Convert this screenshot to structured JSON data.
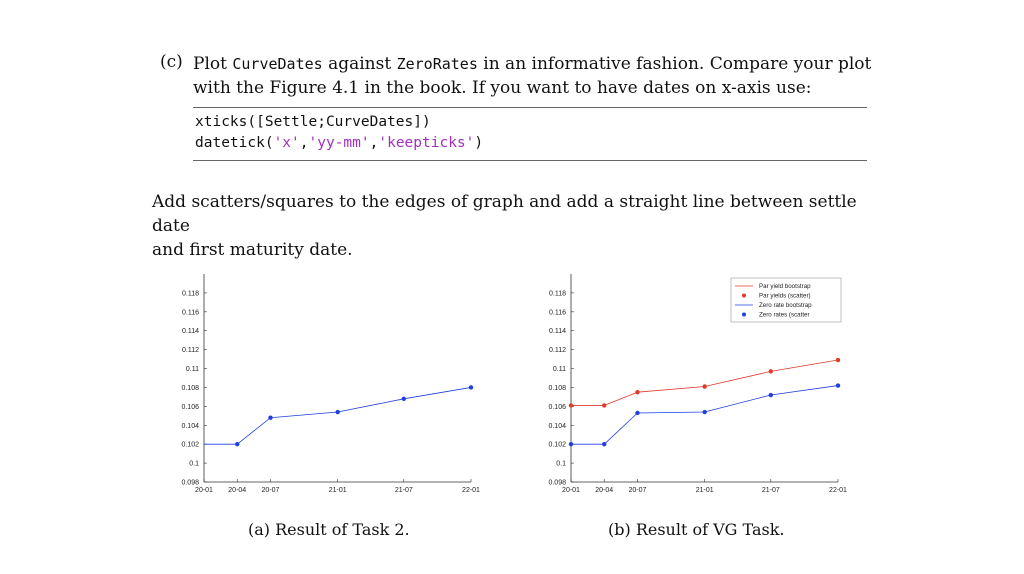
{
  "task": {
    "label": "(c)",
    "line1_part1": "Plot ",
    "line1_code1": "CurveDates",
    "line1_part2": " against ",
    "line1_code2": "ZeroRates",
    "line1_part3": " in an informative fashion. Compare your plot",
    "line2": "with the Figure 4.1 in the book. If you want to have dates on x-axis use:"
  },
  "code": {
    "line1": "xticks([Settle;CurveDates])",
    "line2_prefix": "datetick(",
    "line2_s1": "'x'",
    "line2_c1": ",",
    "line2_s2": "'yy-mm'",
    "line2_c2": ",",
    "line2_s3": "'keepticks'",
    "line2_suffix": ")"
  },
  "paragraph": {
    "line1": "Add scatters/squares to the edges of graph and add a straight line between settle date",
    "line2": "and first maturity date."
  },
  "captions": {
    "a": "(a) Result of Task 2.",
    "b": "(b) Result of VG Task."
  },
  "colors": {
    "zero": "#1f3fe0",
    "par": "#e03a2a",
    "axis": "#333333"
  },
  "chart_data": [
    {
      "type": "line",
      "title": "",
      "xlabel": "",
      "ylabel": "",
      "x": [
        "20-01",
        "20-04",
        "20-07",
        "21-01",
        "21-07",
        "22-01"
      ],
      "xtick_labels": [
        "20-01",
        "20-04",
        "20-07",
        "21-01",
        "21-07",
        "22-01"
      ],
      "ytick_labels": [
        "0.098",
        "0.1",
        "0.102",
        "0.104",
        "0.106",
        "0.108",
        "0.11",
        "0.112",
        "0.114",
        "0.116",
        "0.118"
      ],
      "ylim": [
        0.098,
        0.12
      ],
      "series": [
        {
          "values": [
            0.102,
            0.102,
            0.1048,
            0.1054,
            0.1068,
            0.108
          ]
        }
      ],
      "grid": false
    },
    {
      "type": "line",
      "title": "",
      "xlabel": "",
      "ylabel": "",
      "x": [
        "20-01",
        "20-04",
        "20-07",
        "21-01",
        "21-07",
        "22-01"
      ],
      "xtick_labels": [
        "20-01",
        "20-04",
        "20-07",
        "21-01",
        "21-07",
        "22-01"
      ],
      "ytick_labels": [
        "0.098",
        "0.1",
        "0.102",
        "0.104",
        "0.106",
        "0.108",
        "0.11",
        "0.112",
        "0.114",
        "0.116",
        "0.118"
      ],
      "ylim": [
        0.098,
        0.12
      ],
      "series": [
        {
          "name": "Par yield bootstrap",
          "values": [
            0.1061,
            0.1061,
            0.1075,
            0.1081,
            0.1097,
            0.1109
          ]
        },
        {
          "name": "Zero rate bootstrap",
          "values": [
            0.102,
            0.102,
            0.1053,
            0.1054,
            0.1072,
            0.1082
          ]
        }
      ],
      "legend": {
        "position": "top-right",
        "entries": [
          "Par yield bootstrap",
          "Par yields (scatter)",
          "Zero rate bootstrap",
          "Zero rates (scatter"
        ]
      },
      "grid": false
    }
  ]
}
